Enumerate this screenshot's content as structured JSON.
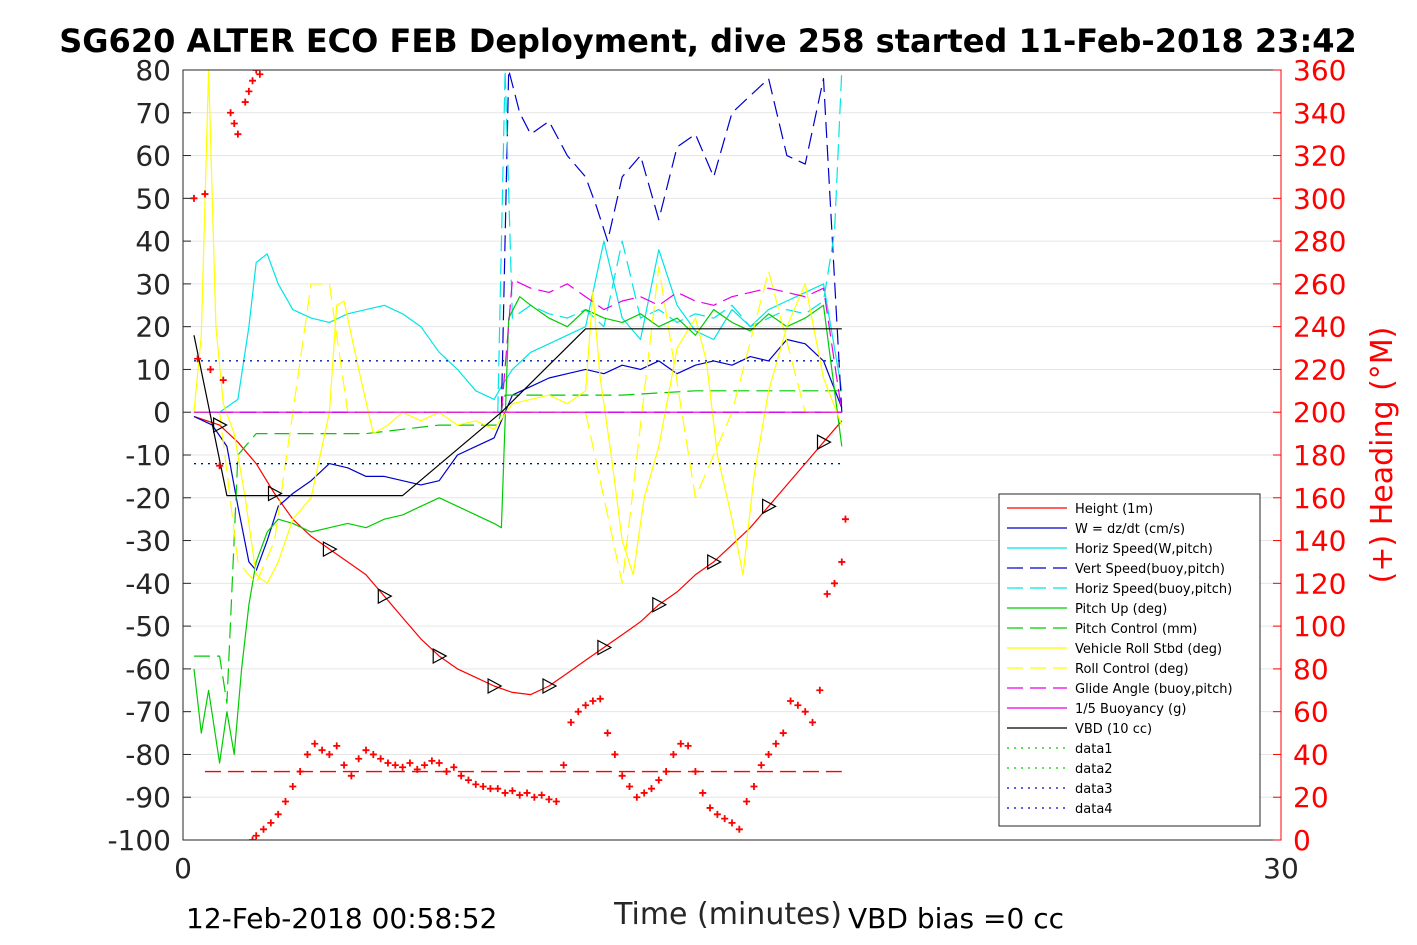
{
  "chart_data": {
    "type": "line",
    "title": "SG620 ALTER ECO FEB Deployment, dive 258 started 11-Feb-2018 23:42",
    "xlabel": "Time (minutes)",
    "ylabel_right": "(+) Heading (°M)",
    "xlim": [
      0,
      30
    ],
    "ylim": [
      -100,
      80
    ],
    "ylim_right": [
      0,
      360
    ],
    "x_ticks": [
      "0",
      "30"
    ],
    "y_ticks": [
      "80",
      "70",
      "60",
      "50",
      "40",
      "30",
      "20",
      "10",
      "0",
      "-10",
      "-20",
      "-30",
      "-40",
      "-50",
      "-60",
      "-70",
      "-80",
      "-90",
      "-100"
    ],
    "y_ticks_right": [
      "360",
      "340",
      "320",
      "300",
      "280",
      "260",
      "240",
      "220",
      "200",
      "180",
      "160",
      "140",
      "120",
      "100",
      "80",
      "60",
      "40",
      "20",
      "0"
    ],
    "grid": true,
    "legend_placement": "lower-right",
    "footer_left": "12-Feb-2018 00:58:52",
    "footer_right": "VBD bias =0 cc",
    "series": [
      {
        "name": "Height (1m)",
        "color": "#ff0000",
        "style": "solid",
        "x": [
          0.3,
          1.0,
          1.5,
          2.0,
          2.5,
          3.0,
          3.5,
          4.0,
          4.5,
          5.0,
          5.5,
          6.0,
          6.5,
          7.0,
          7.5,
          8.0,
          8.5,
          9.0,
          9.5,
          10.0,
          10.5,
          11.0,
          11.5,
          12.0,
          12.5,
          13.0,
          13.5,
          14.0,
          14.5,
          15.0,
          15.5,
          16.0,
          16.5,
          17.0,
          17.5,
          18.0
        ],
        "y": [
          -1,
          -3,
          -7,
          -12,
          -19,
          -25,
          -29,
          -32,
          -35,
          -38,
          -43,
          -48,
          -53,
          -57,
          -60,
          -62,
          -64,
          -65.5,
          -66,
          -64,
          -61,
          -58,
          -55,
          -52,
          -49,
          -45,
          -42,
          -38,
          -35,
          -31,
          -27,
          -22,
          -17,
          -12,
          -7,
          -2
        ]
      },
      {
        "name": "W = dz/dt (cm/s)",
        "color": "#0000cc",
        "style": "solid",
        "x": [
          0.3,
          0.8,
          1.2,
          1.5,
          1.8,
          2.0,
          2.3,
          2.6,
          3.0,
          3.5,
          4.0,
          4.5,
          5.0,
          5.5,
          6.0,
          6.5,
          7.0,
          7.5,
          8.0,
          8.5,
          8.7,
          9.0,
          9.5,
          10.0,
          10.5,
          11.0,
          11.5,
          12.0,
          12.5,
          13.0,
          13.5,
          14.0,
          14.5,
          15.0,
          15.5,
          16.0,
          16.5,
          17.0,
          17.5,
          18.0
        ],
        "y": [
          -1,
          -3,
          -8,
          -22,
          -35,
          -37,
          -30,
          -22,
          -19,
          -16,
          -12,
          -13,
          -15,
          -15,
          -16,
          -17,
          -16,
          -10,
          -8,
          -6,
          -2,
          4,
          6,
          8,
          9,
          10,
          9,
          11,
          10,
          12,
          9,
          11,
          12,
          11,
          13,
          12,
          17,
          16,
          12,
          1
        ]
      },
      {
        "name": "Horiz Speed(W,pitch)",
        "color": "#00e5e5",
        "style": "solid",
        "x": [
          0.3,
          1.0,
          1.5,
          1.8,
          2.0,
          2.3,
          2.6,
          3.0,
          3.5,
          4.0,
          4.5,
          5.0,
          5.5,
          6.0,
          6.5,
          7.0,
          7.5,
          8.0,
          8.5,
          8.7,
          9.0,
          9.5,
          10.0,
          10.5,
          11.0,
          11.5,
          12.0,
          12.5,
          13.0,
          13.5,
          14.0,
          14.5,
          15.0,
          15.5,
          16.0,
          16.5,
          17.0,
          17.5,
          18.0
        ],
        "y": [
          0,
          0,
          3,
          20,
          35,
          37,
          30,
          24,
          22,
          21,
          23,
          24,
          25,
          23,
          20,
          14,
          10,
          5,
          3,
          6,
          10,
          14,
          16,
          18,
          20,
          40,
          22,
          17,
          38,
          25,
          19,
          17,
          24,
          20,
          24,
          26,
          28,
          30,
          5
        ]
      },
      {
        "name": "Vert Speed(buoy,pitch)",
        "color": "#0000cc",
        "style": "dashed",
        "x": [
          8.7,
          8.9,
          9.2,
          9.5,
          10.0,
          10.5,
          11.0,
          11.3,
          11.6,
          12.0,
          12.5,
          13.0,
          13.5,
          14.0,
          14.5,
          15.0,
          15.5,
          16.0,
          16.5,
          17.0,
          17.5,
          18.0
        ],
        "y": [
          0,
          80,
          70,
          65,
          68,
          60,
          55,
          48,
          40,
          55,
          60,
          45,
          62,
          65,
          55,
          70,
          74,
          78,
          60,
          58,
          78,
          0
        ]
      },
      {
        "name": "Horiz Speed(buoy,pitch)",
        "color": "#00e5e5",
        "style": "dashed",
        "x": [
          8.6,
          8.8,
          9.0,
          9.5,
          10.0,
          10.5,
          11.0,
          11.5,
          12.0,
          12.5,
          13.0,
          13.5,
          14.0,
          14.5,
          15.0,
          15.5,
          16.0,
          16.5,
          17.0,
          17.5,
          17.8,
          18.0
        ],
        "y": [
          0,
          80,
          22,
          25,
          23,
          22,
          24,
          20,
          40,
          22,
          24,
          21,
          23,
          22,
          25,
          20,
          22,
          24,
          23,
          26,
          42,
          80
        ]
      },
      {
        "name": "Pitch Up (deg)",
        "color": "#00cc00",
        "style": "solid",
        "x": [
          0.3,
          0.5,
          0.7,
          1.0,
          1.2,
          1.4,
          1.6,
          1.8,
          2.0,
          2.3,
          2.6,
          3.0,
          3.5,
          4.0,
          4.5,
          5.0,
          5.5,
          6.0,
          6.5,
          7.0,
          7.5,
          8.0,
          8.5,
          8.7,
          8.9,
          9.2,
          9.5,
          10.0,
          10.5,
          11.0,
          11.5,
          12.0,
          12.5,
          13.0,
          13.5,
          14.0,
          14.5,
          15.0,
          15.5,
          16.0,
          16.5,
          17.0,
          17.5,
          18.0
        ],
        "y": [
          -60,
          -75,
          -65,
          -82,
          -70,
          -80,
          -60,
          -45,
          -35,
          -28,
          -25,
          -26,
          -28,
          -27,
          -26,
          -27,
          -25,
          -24,
          -22,
          -20,
          -22,
          -24,
          -26,
          -27,
          22,
          27,
          25,
          22,
          20,
          24,
          22,
          21,
          23,
          20,
          22,
          18,
          24,
          21,
          19,
          23,
          20,
          22,
          25,
          -8
        ]
      },
      {
        "name": "Pitch Control (mm)",
        "color": "#00cc00",
        "style": "dashed",
        "x": [
          0.3,
          1.0,
          1.2,
          1.5,
          2.0,
          3.0,
          4.0,
          5.0,
          6.0,
          7.0,
          8.0,
          8.6,
          8.8,
          10.0,
          12.0,
          14.0,
          16.0,
          18.0
        ],
        "y": [
          -57,
          -57,
          -68,
          -10,
          -5,
          -5,
          -5,
          -5,
          -4,
          -3,
          -3,
          -3,
          4,
          4,
          4,
          5,
          5,
          5
        ]
      },
      {
        "name": "Vehicle Roll Stbd (deg)",
        "color": "#ffff00",
        "style": "solid",
        "x": [
          0.3,
          0.5,
          0.7,
          0.9,
          1.1,
          1.4,
          1.7,
          2.0,
          2.3,
          2.6,
          3.0,
          3.5,
          4.0,
          4.2,
          4.4,
          4.8,
          5.2,
          5.6,
          6.0,
          6.5,
          7.0,
          7.5,
          8.0,
          8.5,
          9.0,
          9.5,
          10.0,
          10.5,
          11.0,
          11.2,
          11.4,
          11.7,
          12.0,
          12.3,
          12.6,
          13.0,
          13.5,
          14.0,
          14.3,
          14.6,
          15.0,
          15.3,
          15.6,
          16.0,
          16.5,
          17.0,
          17.5,
          18.0
        ],
        "y": [
          0,
          18,
          80,
          20,
          2,
          -5,
          -20,
          -38,
          -40,
          -35,
          -25,
          -20,
          0,
          25,
          26,
          10,
          -5,
          -3,
          0,
          -2,
          0,
          -3,
          -2,
          -4,
          2,
          3,
          4,
          2,
          5,
          28,
          8,
          -10,
          -30,
          -38,
          -20,
          -8,
          15,
          22,
          12,
          -10,
          -25,
          -38,
          -15,
          5,
          20,
          30,
          8,
          -3
        ]
      },
      {
        "name": "Roll Control (deg)",
        "color": "#ffff00",
        "style": "dashed",
        "x": [
          0.3,
          1.0,
          1.5,
          2.0,
          2.5,
          3.0,
          3.5,
          4.0,
          4.5,
          5.0,
          6.0,
          7.0,
          8.0,
          9.0,
          10.0,
          11.0,
          12.0,
          13.0,
          14.0,
          15.0,
          16.0,
          17.0,
          18.0
        ],
        "y": [
          0,
          0,
          -35,
          -40,
          -30,
          0,
          30,
          30,
          0,
          0,
          0,
          0,
          0,
          0,
          0,
          0,
          -40,
          34,
          -20,
          0,
          33,
          0,
          0
        ]
      },
      {
        "name": "Glide Angle (buoy,pitch)",
        "color": "#e500e5",
        "style": "dashed",
        "x": [
          8.7,
          9.0,
          9.5,
          10.0,
          10.5,
          11.0,
          11.5,
          12.0,
          12.5,
          13.0,
          13.5,
          14.0,
          14.5,
          15.0,
          15.5,
          16.0,
          16.5,
          17.0,
          17.5,
          18.0
        ],
        "y": [
          0,
          31,
          29,
          28,
          30,
          27,
          24,
          26,
          27,
          25,
          28,
          26,
          25,
          27,
          28,
          29,
          28,
          27,
          29,
          0
        ]
      },
      {
        "name": "1/5 Buoyancy (g)",
        "color": "#e500e5",
        "style": "solid",
        "x": [
          0.3,
          18.0
        ],
        "y": [
          0,
          0
        ]
      },
      {
        "name": "VBD (10 cc)",
        "color": "#000000",
        "style": "solid",
        "x": [
          0.3,
          1.2,
          6.0,
          8.7,
          11.0,
          16.0,
          18.0
        ],
        "y": [
          18,
          -19.5,
          -19.5,
          0,
          19.5,
          19.5,
          19.5
        ]
      },
      {
        "name": "data1",
        "color": "#00cc00",
        "style": "dotted",
        "x": [
          0.3,
          18.0
        ],
        "y": [
          12,
          12
        ]
      },
      {
        "name": "data2",
        "color": "#00cc00",
        "style": "dotted",
        "x": [
          0.3,
          18.0
        ],
        "y": [
          -12,
          -12
        ]
      },
      {
        "name": "data3",
        "color": "#0000cc",
        "style": "dotted",
        "x": [
          0.3,
          18.0
        ],
        "y": [
          12,
          12
        ]
      },
      {
        "name": "data4",
        "color": "#0000cc",
        "style": "dotted",
        "x": [
          0.3,
          18.0
        ],
        "y": [
          -12,
          -12
        ]
      }
    ],
    "reference_lines": [
      {
        "color": "#7f00ff",
        "style": "dashed",
        "axis": "left",
        "y": 0,
        "x": [
          0.3,
          18.0
        ]
      },
      {
        "color": "#ff0000",
        "style": "dashed",
        "axis": "right",
        "y": 32,
        "x": [
          0.6,
          18.0
        ]
      }
    ],
    "heading_points": {
      "axis": "right",
      "color": "#ff0000",
      "marker": "+",
      "x": [
        0.3,
        0.4,
        0.6,
        0.75,
        1.0,
        1.1,
        1.3,
        1.4,
        1.5,
        1.7,
        1.8,
        1.9,
        2.0,
        2.1,
        1.9,
        2.0,
        2.2,
        2.4,
        2.6,
        2.8,
        3.0,
        3.2,
        3.4,
        3.6,
        3.8,
        4.0,
        4.2,
        4.4,
        4.6,
        4.8,
        5.0,
        5.2,
        5.4,
        5.6,
        5.8,
        6.0,
        6.2,
        6.4,
        6.6,
        6.8,
        7.0,
        7.2,
        7.4,
        7.6,
        7.8,
        8.0,
        8.2,
        8.4,
        8.6,
        8.8,
        9.0,
        9.2,
        9.4,
        9.6,
        9.8,
        10.0,
        10.2,
        10.4,
        10.6,
        10.8,
        11.0,
        11.2,
        11.4,
        11.6,
        11.8,
        12.0,
        12.2,
        12.4,
        12.6,
        12.8,
        13.0,
        13.2,
        13.4,
        13.6,
        13.8,
        14.0,
        14.2,
        14.4,
        14.6,
        14.8,
        15.0,
        15.2,
        15.4,
        15.6,
        15.8,
        16.0,
        16.2,
        16.4,
        16.6,
        16.8,
        17.0,
        17.2,
        17.4,
        17.6,
        17.8,
        18.0,
        18.1
      ],
      "y": [
        300,
        225,
        302,
        220,
        175,
        215,
        340,
        335,
        330,
        345,
        350,
        355,
        360,
        358,
        0,
        2,
        5,
        8,
        12,
        18,
        25,
        32,
        40,
        45,
        42,
        40,
        44,
        35,
        30,
        38,
        42,
        40,
        38,
        36,
        35,
        34,
        36,
        33,
        35,
        37,
        36,
        32,
        34,
        30,
        28,
        26,
        25,
        24,
        24,
        22,
        23,
        21,
        22,
        20,
        21,
        19,
        18,
        35,
        55,
        60,
        63,
        65,
        66,
        50,
        40,
        30,
        25,
        20,
        22,
        24,
        28,
        32,
        40,
        45,
        44,
        32,
        22,
        15,
        12,
        10,
        8,
        5,
        18,
        25,
        35,
        40,
        45,
        50,
        65,
        63,
        60,
        55,
        70,
        115,
        120,
        130,
        150
      ]
    }
  }
}
